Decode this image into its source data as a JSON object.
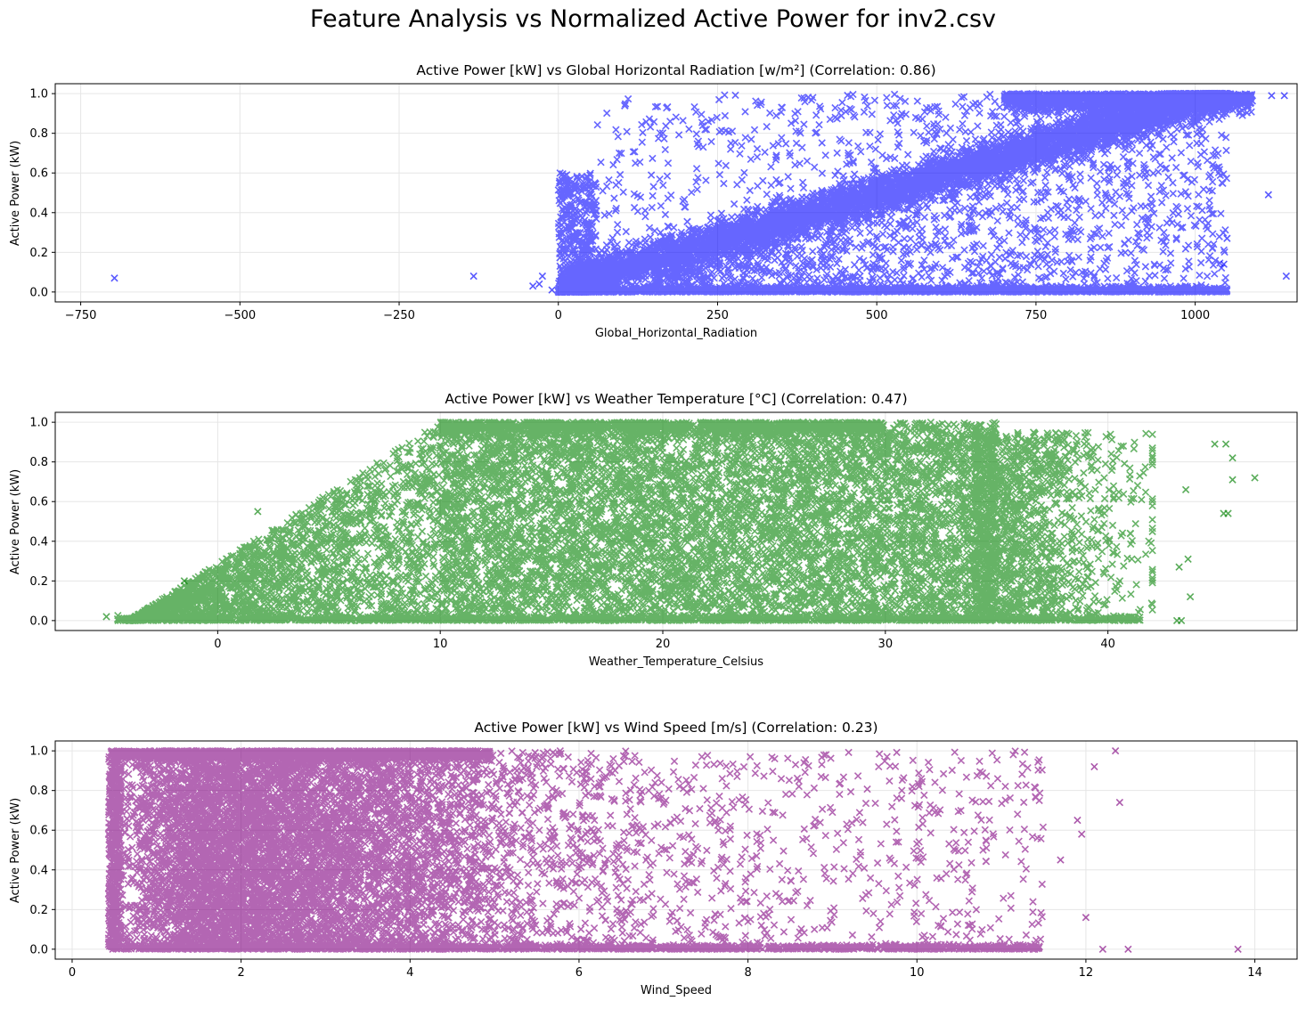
{
  "figure": {
    "title": "Feature Analysis vs Normalized Active Power for inv2.csv"
  },
  "chart_data": [
    {
      "type": "scatter",
      "title": "Active Power [kW] vs Global Horizontal Radiation [w/m²] (Correlation: 0.86)",
      "xlabel": "Global_Horizontal_Radiation",
      "ylabel": "Active Power (kW)",
      "xlim": [
        -790,
        1160
      ],
      "ylim": [
        -0.05,
        1.05
      ],
      "xticks": [
        -750,
        -500,
        -250,
        0,
        250,
        500,
        750,
        1000
      ],
      "xtick_labels": [
        "−750",
        "−500",
        "−250",
        "0",
        "250",
        "500",
        "750",
        "1000"
      ],
      "yticks": [
        0.0,
        0.2,
        0.4,
        0.6,
        0.8,
        1.0
      ],
      "ytick_labels": [
        "0.0",
        "0.2",
        "0.4",
        "0.6",
        "0.8",
        "1.0"
      ],
      "grid": true,
      "marker": "x",
      "color": "#0000ff",
      "correlation": 0.86,
      "outlier_points": [
        [
          -697,
          0.07
        ],
        [
          -133,
          0.08
        ],
        [
          -40,
          0.03
        ],
        [
          -30,
          0.04
        ],
        [
          -25,
          0.08
        ],
        [
          -10,
          0.01
        ],
        [
          1115,
          0.49
        ],
        [
          1120,
          0.99
        ],
        [
          1140,
          0.99
        ],
        [
          1143,
          0.08
        ],
        [
          1050,
          0.27
        ],
        [
          1045,
          0.14
        ]
      ],
      "description_of_cloud": "dense band from (0, 0.0) rising to (1000, 0.95); scattered points 0–1050 across 0–1; dense floor near 0"
    },
    {
      "type": "scatter",
      "title": "Active Power [kW] vs Weather Temperature [°C] (Correlation: 0.47)",
      "xlabel": "Weather_Temperature_Celsius",
      "ylabel": "Active Power (kW)",
      "xlim": [
        -7.3,
        48.5
      ],
      "ylim": [
        -0.05,
        1.05
      ],
      "xticks": [
        0,
        10,
        20,
        30,
        40
      ],
      "xtick_labels": [
        "0",
        "10",
        "20",
        "30",
        "40"
      ],
      "yticks": [
        0.0,
        0.2,
        0.4,
        0.6,
        0.8,
        1.0
      ],
      "ytick_labels": [
        "0.0",
        "0.2",
        "0.4",
        "0.6",
        "0.8",
        "1.0"
      ],
      "grid": true,
      "marker": "x",
      "color": "#008000",
      "correlation": 0.47,
      "outlier_points": [
        [
          -5,
          0.02
        ],
        [
          -1.5,
          0.2
        ],
        [
          1.8,
          0.55
        ],
        [
          44.8,
          0.89
        ],
        [
          45.3,
          0.89
        ],
        [
          45.6,
          0.82
        ],
        [
          46.6,
          0.72
        ],
        [
          45.6,
          0.71
        ],
        [
          45.2,
          0.54
        ],
        [
          45.4,
          0.54
        ],
        [
          43.5,
          0.66
        ],
        [
          43.6,
          0.31
        ],
        [
          43.2,
          0.27
        ],
        [
          43.7,
          0.12
        ],
        [
          43.1,
          0.0
        ],
        [
          43.3,
          0.0
        ]
      ],
      "description_of_cloud": "dense block from 10 to 35 °C spanning 0–1; ramp rising from (-4, 0) to (10, 1); sparse tail to 44 °C"
    },
    {
      "type": "scatter",
      "title": "Active Power [kW] vs Wind Speed [m/s] (Correlation: 0.23)",
      "xlabel": "Wind_Speed",
      "ylabel": "Active Power (kW)",
      "xlim": [
        -0.2,
        14.5
      ],
      "ylim": [
        -0.05,
        1.05
      ],
      "xticks": [
        0,
        2,
        4,
        6,
        8,
        10,
        12,
        14
      ],
      "xtick_labels": [
        "0",
        "2",
        "4",
        "6",
        "8",
        "10",
        "12",
        "14"
      ],
      "yticks": [
        0.0,
        0.2,
        0.4,
        0.6,
        0.8,
        1.0
      ],
      "ytick_labels": [
        "0.0",
        "0.2",
        "0.4",
        "0.6",
        "0.8",
        "1.0"
      ],
      "grid": true,
      "marker": "x",
      "color": "#800080",
      "correlation": 0.23,
      "outlier_points": [
        [
          13.8,
          0.0
        ],
        [
          12.4,
          0.74
        ],
        [
          12.35,
          1.0
        ],
        [
          12.1,
          0.92
        ],
        [
          12.0,
          0.16
        ],
        [
          11.7,
          0.45
        ],
        [
          11.9,
          0.65
        ],
        [
          12.5,
          0.0
        ],
        [
          12.2,
          0.0
        ],
        [
          11.95,
          0.58
        ]
      ],
      "description_of_cloud": "dense block from 0.4 to 5 m/s spanning 0–1; thinning toward 10 m/s; sparse points to 12.5 m/s; dense floor near 0"
    }
  ]
}
